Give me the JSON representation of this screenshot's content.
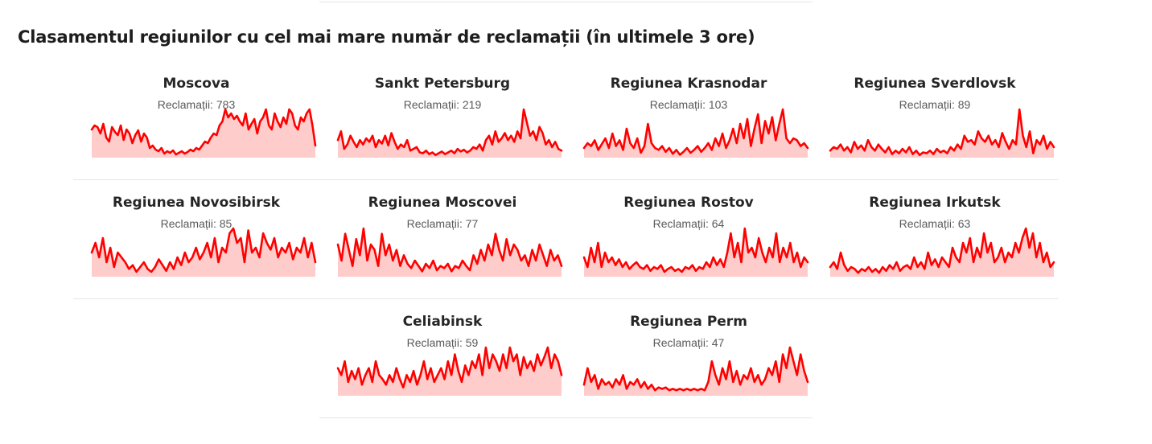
{
  "title": "Clasamentul regiunilor cu cel mai mare număr de reclamații (în ultimele 3 ore)",
  "colors": {
    "line": "#ff0000",
    "fill": "#ffcccc",
    "divider": "#e6e6e6"
  },
  "chart_data": {
    "type": "area",
    "regions": [
      {
        "name": "Moscova",
        "count_label": "Reclamații: 783",
        "count": 783,
        "values": [
          35,
          40,
          38,
          30,
          42,
          25,
          20,
          38,
          32,
          28,
          40,
          22,
          35,
          30,
          18,
          28,
          34,
          20,
          30,
          25,
          12,
          15,
          10,
          8,
          12,
          5,
          8,
          6,
          9,
          4,
          6,
          8,
          5,
          7,
          10,
          8,
          12,
          10,
          15,
          20,
          18,
          25,
          30,
          28,
          40,
          45,
          60,
          50,
          55,
          48,
          52,
          45,
          40,
          55,
          35,
          42,
          48,
          30,
          45,
          50,
          60,
          40,
          35,
          55,
          45,
          38,
          50,
          42,
          60,
          55,
          40,
          35,
          50,
          45,
          55,
          60,
          40,
          15
        ]
      },
      {
        "name": "Sankt Petersburg",
        "count_label": "Reclamații: 219",
        "count": 219,
        "values": [
          20,
          30,
          10,
          15,
          25,
          18,
          12,
          20,
          15,
          22,
          18,
          25,
          12,
          20,
          16,
          25,
          14,
          28,
          18,
          10,
          15,
          12,
          20,
          8,
          10,
          12,
          6,
          5,
          8,
          4,
          6,
          3,
          5,
          7,
          4,
          6,
          8,
          5,
          10,
          7,
          9,
          6,
          8,
          12,
          10,
          15,
          8,
          20,
          25,
          15,
          30,
          18,
          22,
          28,
          20,
          25,
          18,
          30,
          22,
          55,
          40,
          25,
          30,
          20,
          35,
          28,
          15,
          20,
          12,
          18,
          10,
          8
        ]
      },
      {
        "name": "Regiunea Krasnodar",
        "count_label": "Reclamații: 103",
        "count": 103,
        "values": [
          10,
          15,
          12,
          18,
          8,
          14,
          20,
          10,
          25,
          12,
          18,
          8,
          30,
          15,
          10,
          20,
          5,
          12,
          35,
          15,
          10,
          8,
          12,
          6,
          10,
          4,
          8,
          3,
          6,
          10,
          5,
          8,
          12,
          6,
          10,
          15,
          8,
          20,
          12,
          25,
          10,
          18,
          30,
          15,
          35,
          20,
          40,
          12,
          30,
          45,
          15,
          38,
          25,
          42,
          18,
          35,
          50,
          20,
          15,
          20,
          18,
          12,
          15,
          10
        ]
      },
      {
        "name": "Regiunea Sverdlovsk",
        "count_label": "Reclamații: 89",
        "count": 89,
        "values": [
          8,
          12,
          10,
          15,
          8,
          12,
          6,
          18,
          10,
          14,
          8,
          20,
          12,
          8,
          15,
          10,
          6,
          12,
          4,
          8,
          5,
          10,
          6,
          12,
          4,
          8,
          3,
          6,
          5,
          8,
          4,
          10,
          6,
          8,
          5,
          12,
          8,
          15,
          10,
          25,
          18,
          20,
          15,
          30,
          22,
          18,
          25,
          15,
          20,
          12,
          28,
          18,
          10,
          20,
          15,
          55,
          25,
          12,
          30,
          5,
          20,
          15,
          25,
          10,
          18,
          12
        ]
      },
      {
        "name": "Regiunea Novosibirsk",
        "count_label": "Reclamații: 85",
        "count": 85,
        "values": [
          25,
          35,
          20,
          40,
          15,
          30,
          10,
          25,
          20,
          15,
          8,
          12,
          5,
          10,
          15,
          8,
          5,
          10,
          18,
          12,
          6,
          15,
          8,
          20,
          12,
          25,
          15,
          20,
          30,
          18,
          25,
          35,
          20,
          40,
          15,
          30,
          25,
          45,
          50,
          35,
          40,
          15,
          48,
          25,
          30,
          20,
          45,
          35,
          28,
          40,
          20,
          30,
          25,
          35,
          18,
          30,
          25,
          40,
          20,
          35,
          15
        ]
      },
      {
        "name": "Regiunea Moscovei",
        "count_label": "Reclamații: 77",
        "count": 77,
        "values": [
          30,
          15,
          40,
          25,
          10,
          35,
          20,
          45,
          15,
          30,
          25,
          10,
          40,
          20,
          30,
          15,
          25,
          10,
          20,
          12,
          8,
          15,
          10,
          5,
          12,
          8,
          15,
          6,
          10,
          8,
          12,
          5,
          10,
          8,
          15,
          10,
          6,
          20,
          12,
          25,
          15,
          30,
          20,
          40,
          25,
          15,
          35,
          20,
          30,
          25,
          15,
          20,
          10,
          25,
          15,
          30,
          20,
          10,
          25,
          15,
          20,
          10
        ]
      },
      {
        "name": "Regiunea Rostov",
        "count_label": "Reclamații: 64",
        "count": 64,
        "values": [
          20,
          10,
          30,
          15,
          35,
          10,
          25,
          15,
          20,
          12,
          18,
          10,
          15,
          8,
          12,
          15,
          10,
          8,
          12,
          6,
          10,
          8,
          12,
          5,
          8,
          10,
          6,
          8,
          5,
          10,
          8,
          12,
          6,
          10,
          8,
          15,
          10,
          20,
          12,
          18,
          10,
          25,
          45,
          20,
          35,
          15,
          50,
          25,
          30,
          20,
          40,
          25,
          15,
          30,
          20,
          45,
          15,
          30,
          20,
          35,
          15,
          25,
          10,
          20,
          15
        ]
      },
      {
        "name": "Regiunea Irkutsk",
        "count_label": "Reclamații: 63",
        "count": 63,
        "values": [
          10,
          15,
          8,
          25,
          12,
          6,
          10,
          8,
          4,
          8,
          6,
          10,
          5,
          8,
          4,
          10,
          6,
          12,
          8,
          15,
          6,
          10,
          12,
          8,
          20,
          10,
          15,
          8,
          25,
          12,
          18,
          10,
          20,
          15,
          10,
          30,
          20,
          15,
          35,
          25,
          40,
          15,
          30,
          20,
          45,
          25,
          35,
          15,
          20,
          30,
          15,
          25,
          20,
          35,
          25,
          40,
          50,
          30,
          45,
          20,
          35,
          15,
          25,
          10,
          15
        ]
      },
      {
        "name": "Celiabinsk",
        "count_label": "Reclamații: 59",
        "count": 59,
        "values": [
          20,
          15,
          25,
          10,
          18,
          12,
          20,
          8,
          15,
          20,
          10,
          25,
          15,
          12,
          8,
          15,
          10,
          20,
          12,
          6,
          15,
          10,
          18,
          8,
          15,
          25,
          12,
          20,
          10,
          15,
          20,
          12,
          25,
          15,
          30,
          18,
          10,
          22,
          15,
          25,
          20,
          30,
          15,
          35,
          20,
          30,
          25,
          18,
          30,
          20,
          35,
          25,
          30,
          15,
          28,
          20,
          25,
          18,
          30,
          22,
          28,
          35,
          20,
          30,
          25,
          15
        ]
      },
      {
        "name": "Regiunea Perm",
        "count_label": "Reclamații: 47",
        "count": 47,
        "values": [
          8,
          20,
          10,
          15,
          5,
          12,
          8,
          10,
          6,
          12,
          8,
          15,
          5,
          10,
          8,
          12,
          6,
          10,
          5,
          8,
          4,
          6,
          5,
          6,
          4,
          5,
          4,
          5,
          4,
          5,
          4,
          5,
          4,
          5,
          4,
          10,
          25,
          15,
          8,
          20,
          12,
          25,
          10,
          18,
          8,
          15,
          12,
          20,
          10,
          15,
          8,
          12,
          20,
          15,
          25,
          10,
          30,
          20,
          35,
          25,
          15,
          30,
          18,
          10
        ]
      }
    ]
  }
}
